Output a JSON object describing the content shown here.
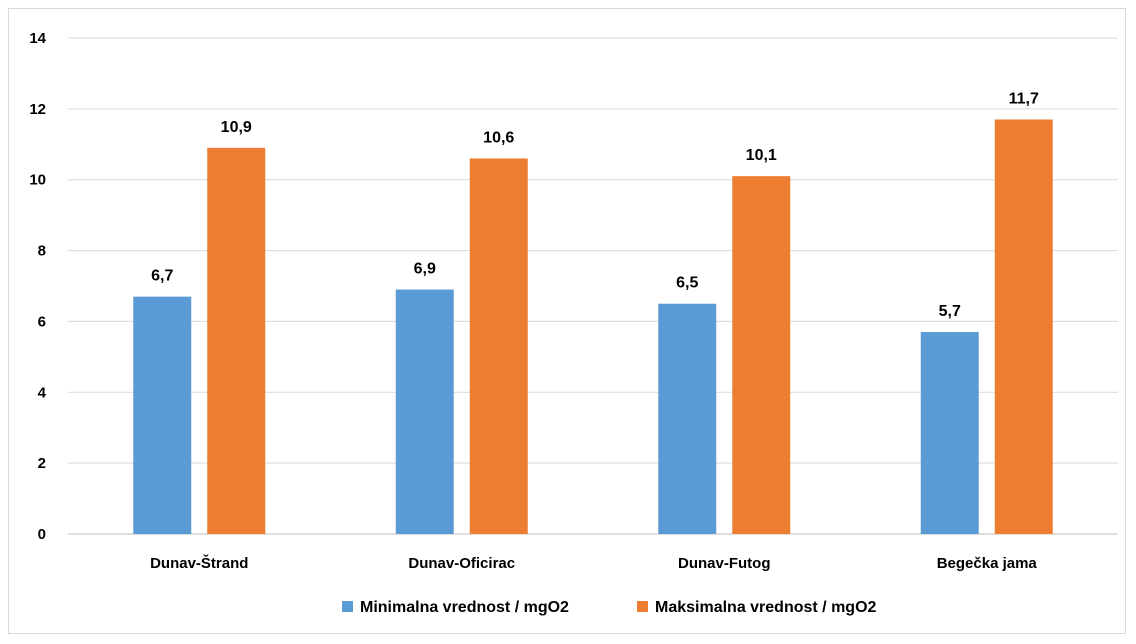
{
  "chart_data": {
    "type": "bar",
    "categories": [
      "Dunav-Štrand",
      "Dunav-Oficirac",
      "Dunav-Futog",
      "Begečka jama"
    ],
    "series": [
      {
        "name": "Minimalna vrednost / mgO2",
        "values": [
          6.7,
          6.9,
          6.5,
          5.7
        ],
        "labels": [
          "6,7",
          "6,9",
          "6,5",
          "5,7"
        ],
        "color": "#5b9bd5"
      },
      {
        "name": "Maksimalna vrednost / mgO2",
        "values": [
          10.9,
          10.6,
          10.1,
          11.7
        ],
        "labels": [
          "10,9",
          "10,6",
          "10,1",
          "11,7"
        ],
        "color": "#ed7d31"
      }
    ],
    "yticks": [
      "0",
      "2",
      "4",
      "6",
      "8",
      "10",
      "12",
      "14"
    ],
    "ylim": [
      0,
      14
    ],
    "grid": true,
    "legend": "bottom",
    "title": "",
    "xlabel": "",
    "ylabel": ""
  }
}
